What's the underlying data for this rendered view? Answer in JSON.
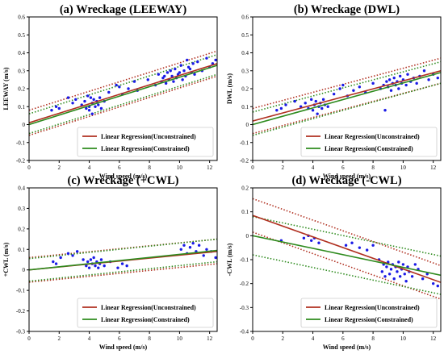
{
  "chart_data": [
    {
      "type": "scatter",
      "title": "(a) Wreckage (LEEWAY)",
      "xlabel": "Wind speed (m/s)",
      "ylabel": "LEEWAY (m/s)",
      "xlim": [
        0,
        12.5
      ],
      "ylim": [
        -0.2,
        0.6
      ],
      "xticks": [
        "0",
        "2",
        "4",
        "6",
        "8",
        "10",
        "12"
      ],
      "yticks": [
        "-0.2",
        "-0.1",
        "0",
        "0.1",
        "0.2",
        "0.3",
        "0.4",
        "0.5",
        "0.6"
      ],
      "grid": false,
      "legend_position": "lower-right",
      "series": [
        {
          "name": "Linear Regression(Unconstrained)",
          "kind": "line",
          "color": "#b03020",
          "x": [
            0,
            12.5
          ],
          "y": [
            0.01,
            0.34
          ]
        },
        {
          "name": "Linear Regression(Constrained)",
          "kind": "line",
          "color": "#2e8b1e",
          "x": [
            0,
            12.5
          ],
          "y": [
            0.0,
            0.33
          ]
        },
        {
          "kind": "band",
          "color": "#b03020",
          "x": [
            0,
            12.5
          ],
          "y": [
            0.08,
            0.41
          ]
        },
        {
          "kind": "band",
          "color": "#b03020",
          "x": [
            0,
            12.5
          ],
          "y": [
            -0.06,
            0.27
          ]
        },
        {
          "kind": "band",
          "color": "#2e8b1e",
          "x": [
            0,
            12.5
          ],
          "y": [
            0.06,
            0.39
          ]
        },
        {
          "kind": "band",
          "color": "#2e8b1e",
          "x": [
            0,
            12.5
          ],
          "y": [
            -0.05,
            0.28
          ]
        },
        {
          "kind": "points",
          "color": "#1a1ae6",
          "x": [
            1.5,
            1.8,
            2.0,
            2.6,
            2.9,
            3.1,
            3.5,
            3.7,
            3.8,
            3.9,
            4.0,
            4.0,
            4.1,
            4.2,
            4.2,
            4.3,
            4.4,
            4.5,
            4.6,
            4.7,
            4.8,
            5.0,
            5.3,
            5.8,
            6.0,
            6.2,
            6.6,
            7.0,
            7.2,
            7.9,
            8.4,
            8.6,
            8.8,
            8.9,
            9.0,
            9.1,
            9.2,
            9.3,
            9.4,
            9.5,
            9.6,
            9.7,
            9.8,
            9.9,
            10.0,
            10.1,
            10.2,
            10.3,
            10.4,
            10.5,
            10.6,
            10.7,
            10.8,
            10.9,
            11.0,
            11.2,
            11.5,
            11.8,
            12.0,
            12.2,
            12.4
          ],
          "y": [
            0.08,
            0.1,
            0.09,
            0.15,
            0.12,
            0.14,
            0.11,
            0.13,
            0.09,
            0.16,
            0.1,
            0.08,
            0.15,
            0.06,
            0.12,
            0.14,
            0.1,
            0.13,
            0.11,
            0.15,
            0.09,
            0.13,
            0.18,
            0.22,
            0.21,
            0.17,
            0.2,
            0.24,
            0.19,
            0.25,
            0.22,
            0.28,
            0.24,
            0.26,
            0.27,
            0.23,
            0.29,
            0.25,
            0.3,
            0.27,
            0.24,
            0.31,
            0.26,
            0.28,
            0.29,
            0.33,
            0.25,
            0.3,
            0.27,
            0.36,
            0.32,
            0.31,
            0.29,
            0.34,
            0.28,
            0.35,
            0.3,
            0.37,
            0.32,
            0.34,
            0.36
          ]
        }
      ]
    },
    {
      "type": "scatter",
      "title": "(b) Wreckage (DWL)",
      "xlabel": "Wind speed (m/s)",
      "ylabel": "DWL (m/s)",
      "xlim": [
        0,
        12.5
      ],
      "ylim": [
        -0.2,
        0.6
      ],
      "xticks": [
        "0",
        "2",
        "4",
        "6",
        "8",
        "10",
        "12"
      ],
      "yticks": [
        "-0.2",
        "-0.1",
        "0",
        "0.1",
        "0.2",
        "0.3",
        "0.4",
        "0.5",
        "0.6"
      ],
      "grid": false,
      "legend_position": "lower-right",
      "series": [
        {
          "name": "Linear Regression(Unconstrained)",
          "kind": "line",
          "color": "#b03020",
          "x": [
            0,
            12.5
          ],
          "y": [
            0.02,
            0.3
          ]
        },
        {
          "name": "Linear Regression(Constrained)",
          "kind": "line",
          "color": "#2e8b1e",
          "x": [
            0,
            12.5
          ],
          "y": [
            0.0,
            0.29
          ]
        },
        {
          "kind": "band",
          "color": "#b03020",
          "x": [
            0,
            12.5
          ],
          "y": [
            0.09,
            0.37
          ]
        },
        {
          "kind": "band",
          "color": "#b03020",
          "x": [
            0,
            12.5
          ],
          "y": [
            -0.05,
            0.23
          ]
        },
        {
          "kind": "band",
          "color": "#2e8b1e",
          "x": [
            0,
            12.5
          ],
          "y": [
            0.07,
            0.35
          ]
        },
        {
          "kind": "band",
          "color": "#2e8b1e",
          "x": [
            0,
            12.5
          ],
          "y": [
            -0.06,
            0.23
          ]
        },
        {
          "kind": "points",
          "color": "#1a1ae6",
          "x": [
            1.6,
            1.9,
            2.2,
            2.8,
            3.2,
            3.5,
            3.7,
            3.9,
            4.0,
            4.1,
            4.2,
            4.3,
            4.4,
            4.5,
            4.6,
            4.7,
            4.8,
            5.0,
            5.4,
            5.8,
            6.0,
            6.3,
            6.7,
            7.1,
            7.5,
            8.0,
            8.5,
            8.7,
            8.8,
            8.9,
            9.0,
            9.1,
            9.2,
            9.3,
            9.4,
            9.5,
            9.6,
            9.7,
            9.8,
            9.9,
            10.0,
            10.2,
            10.3,
            10.5,
            10.7,
            10.9,
            11.1,
            11.4,
            11.7,
            12.0,
            12.3
          ],
          "y": [
            0.08,
            0.09,
            0.11,
            0.13,
            0.1,
            0.12,
            0.09,
            0.14,
            0.08,
            0.11,
            0.13,
            0.06,
            0.1,
            0.12,
            0.09,
            0.14,
            0.11,
            0.1,
            0.17,
            0.2,
            0.22,
            0.16,
            0.19,
            0.21,
            0.18,
            0.23,
            0.2,
            0.22,
            0.08,
            0.24,
            0.21,
            0.25,
            0.19,
            0.23,
            0.26,
            0.22,
            0.24,
            0.2,
            0.27,
            0.23,
            0.25,
            0.22,
            0.28,
            0.24,
            0.26,
            0.23,
            0.27,
            0.3,
            0.25,
            0.28,
            0.26
          ]
        }
      ]
    },
    {
      "type": "scatter",
      "title": "(c) Wreckage (+CWL)",
      "xlabel": "Wind speed (m/s)",
      "ylabel": "+CWL (m/s)",
      "xlim": [
        0,
        12.5
      ],
      "ylim": [
        -0.3,
        0.4
      ],
      "xticks": [
        "0",
        "2",
        "4",
        "6",
        "8",
        "10",
        "12"
      ],
      "yticks": [
        "-0.3",
        "-0.2",
        "-0.1",
        "0",
        "0.1",
        "0.2",
        "0.3",
        "0.4"
      ],
      "grid": false,
      "legend_position": "lower-right",
      "series": [
        {
          "name": "Linear Regression(Unconstrained)",
          "kind": "line",
          "color": "#b03020",
          "x": [
            0,
            12.5
          ],
          "y": [
            0.0,
            0.09
          ]
        },
        {
          "name": "Linear Regression(Constrained)",
          "kind": "line",
          "color": "#2e8b1e",
          "x": [
            0,
            12.5
          ],
          "y": [
            0.0,
            0.095
          ]
        },
        {
          "kind": "band",
          "color": "#b03020",
          "x": [
            0,
            12.5
          ],
          "y": [
            0.06,
            0.15
          ]
        },
        {
          "kind": "band",
          "color": "#b03020",
          "x": [
            0,
            12.5
          ],
          "y": [
            -0.06,
            0.03
          ]
        },
        {
          "kind": "band",
          "color": "#2e8b1e",
          "x": [
            0,
            12.5
          ],
          "y": [
            0.055,
            0.15
          ]
        },
        {
          "kind": "band",
          "color": "#2e8b1e",
          "x": [
            0,
            12.5
          ],
          "y": [
            -0.055,
            0.04
          ]
        },
        {
          "kind": "points",
          "color": "#1a1ae6",
          "x": [
            1.6,
            1.8,
            2.1,
            2.6,
            2.9,
            3.2,
            3.6,
            3.8,
            3.9,
            4.0,
            4.1,
            4.2,
            4.3,
            4.4,
            4.5,
            4.6,
            4.7,
            4.8,
            5.0,
            5.4,
            5.9,
            6.2,
            6.5,
            10.1,
            10.3,
            10.5,
            10.7,
            10.9,
            11.1,
            11.3,
            11.6,
            11.8,
            12.1,
            12.4
          ],
          "y": [
            0.04,
            0.03,
            0.06,
            0.08,
            0.07,
            0.09,
            0.05,
            0.02,
            0.04,
            0.01,
            0.05,
            0.03,
            0.06,
            0.02,
            0.04,
            0.01,
            0.03,
            0.05,
            0.02,
            0.04,
            0.01,
            0.03,
            0.02,
            0.1,
            0.12,
            0.08,
            0.11,
            0.13,
            0.09,
            0.12,
            0.07,
            0.1,
            0.09,
            0.06
          ]
        }
      ]
    },
    {
      "type": "scatter",
      "title": "(d) Wreckage (-CWL)",
      "xlabel": "Wind speed (m/s)",
      "ylabel": "-CWL (m/s)",
      "xlim": [
        0,
        12.5
      ],
      "ylim": [
        -0.4,
        0.2
      ],
      "xticks": [
        "0",
        "2",
        "4",
        "6",
        "8",
        "10",
        "12"
      ],
      "yticks": [
        "-0.4",
        "-0.3",
        "-0.2",
        "-0.1",
        "0",
        "0.1",
        "0.2"
      ],
      "grid": false,
      "legend_position": "lower-right",
      "series": [
        {
          "name": "Linear Regression(Unconstrained)",
          "kind": "line",
          "color": "#b03020",
          "x": [
            0,
            12.5
          ],
          "y": [
            0.085,
            -0.195
          ]
        },
        {
          "name": "Linear Regression(Constrained)",
          "kind": "line",
          "color": "#2e8b1e",
          "x": [
            0,
            12.5
          ],
          "y": [
            0.0,
            -0.165
          ]
        },
        {
          "kind": "band",
          "color": "#b03020",
          "x": [
            0,
            12.5
          ],
          "y": [
            0.155,
            -0.125
          ]
        },
        {
          "kind": "band",
          "color": "#b03020",
          "x": [
            0,
            12.5
          ],
          "y": [
            0.015,
            -0.265
          ]
        },
        {
          "kind": "band",
          "color": "#2e8b1e",
          "x": [
            0,
            12.5
          ],
          "y": [
            0.08,
            -0.085
          ]
        },
        {
          "kind": "band",
          "color": "#2e8b1e",
          "x": [
            0,
            12.5
          ],
          "y": [
            -0.08,
            -0.245
          ]
        },
        {
          "kind": "points",
          "color": "#1a1ae6",
          "x": [
            1.9,
            3.4,
            3.7,
            3.9,
            4.1,
            4.4,
            6.2,
            6.6,
            7.1,
            7.6,
            8.0,
            8.4,
            8.6,
            8.7,
            8.8,
            8.9,
            9.0,
            9.1,
            9.2,
            9.3,
            9.4,
            9.5,
            9.6,
            9.7,
            9.8,
            9.9,
            10.0,
            10.1,
            10.2,
            10.3,
            10.4,
            10.6,
            10.8,
            11.0,
            11.3,
            11.6,
            12.0,
            12.3
          ],
          "y": [
            -0.02,
            -0.01,
            0.0,
            -0.02,
            -0.01,
            -0.03,
            -0.04,
            -0.03,
            -0.05,
            -0.06,
            -0.04,
            -0.1,
            -0.15,
            -0.12,
            -0.17,
            -0.13,
            -0.11,
            -0.16,
            -0.14,
            -0.12,
            -0.18,
            -0.13,
            -0.15,
            -0.11,
            -0.17,
            -0.14,
            -0.12,
            -0.16,
            -0.19,
            -0.13,
            -0.15,
            -0.17,
            -0.12,
            -0.14,
            -0.18,
            -0.16,
            -0.2,
            -0.21
          ]
        }
      ]
    }
  ]
}
